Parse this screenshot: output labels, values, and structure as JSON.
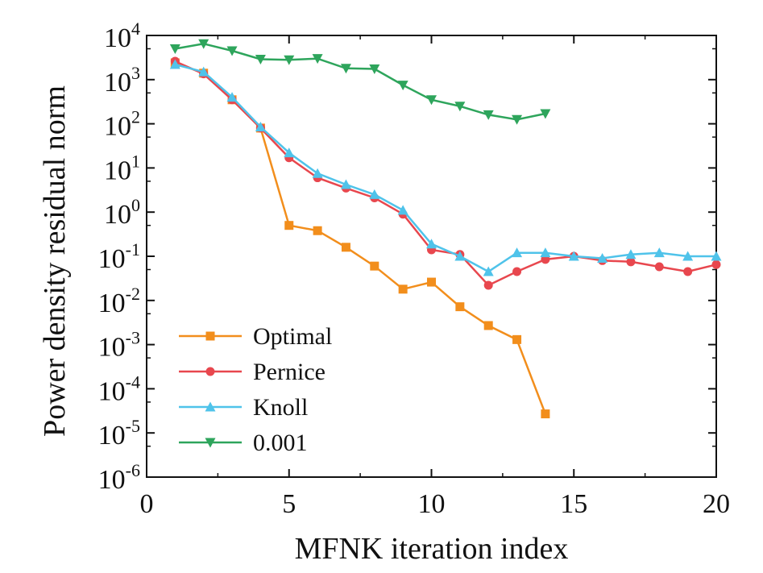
{
  "chart_data": {
    "type": "line",
    "xlabel": "MFNK iteration index",
    "ylabel": "Power density residual norm",
    "xlim": [
      0,
      20
    ],
    "ylim": [
      1e-06,
      10000.0
    ],
    "yscale": "log",
    "xticks": [
      0,
      5,
      10,
      15,
      20
    ],
    "yticks": [
      {
        "base": "10",
        "exp": "4",
        "value": 10000
      },
      {
        "base": "10",
        "exp": "3",
        "value": 1000
      },
      {
        "base": "10",
        "exp": "2",
        "value": 100
      },
      {
        "base": "10",
        "exp": "1",
        "value": 10
      },
      {
        "base": "10",
        "exp": "0",
        "value": 1
      },
      {
        "base": "10",
        "exp": "-1",
        "value": 0.1
      },
      {
        "base": "10",
        "exp": "-2",
        "value": 0.01
      },
      {
        "base": "10",
        "exp": "-3",
        "value": 0.001
      },
      {
        "base": "10",
        "exp": "-4",
        "value": 0.0001
      },
      {
        "base": "10",
        "exp": "-5",
        "value": 1e-05
      },
      {
        "base": "10",
        "exp": "-6",
        "value": 1e-06
      }
    ],
    "legend_position": "bottom-left",
    "grid": false,
    "series": [
      {
        "name": "Optimal",
        "color": "#f28e1c",
        "marker": "square",
        "x": [
          1,
          2,
          3,
          4,
          5,
          6,
          7,
          8,
          9,
          10,
          11,
          12,
          13,
          14
        ],
        "y": [
          2400,
          1400,
          350,
          80,
          0.5,
          0.38,
          0.16,
          0.06,
          0.018,
          0.026,
          0.0072,
          0.0027,
          0.0013,
          2.7e-05
        ]
      },
      {
        "name": "Pernice",
        "color": "#e8474e",
        "marker": "circle",
        "x": [
          1,
          2,
          3,
          4,
          5,
          6,
          7,
          8,
          9,
          10,
          11,
          12,
          13,
          14,
          15,
          16,
          17,
          18,
          19,
          20
        ],
        "y": [
          2600,
          1350,
          350,
          80,
          17,
          6,
          3.5,
          2.1,
          0.9,
          0.14,
          0.11,
          0.022,
          0.045,
          0.085,
          0.1,
          0.08,
          0.075,
          0.058,
          0.045,
          0.065
        ]
      },
      {
        "name": "Knoll",
        "color": "#4fc3ea",
        "marker": "triangle-up",
        "x": [
          1,
          2,
          3,
          4,
          5,
          6,
          7,
          8,
          9,
          10,
          11,
          12,
          13,
          14,
          15,
          16,
          17,
          18,
          19,
          20
        ],
        "y": [
          2200,
          1500,
          400,
          85,
          22,
          7.5,
          4.2,
          2.5,
          1.1,
          0.19,
          0.1,
          0.045,
          0.12,
          0.12,
          0.1,
          0.09,
          0.11,
          0.12,
          0.1,
          0.1
        ]
      },
      {
        "name": "0.001",
        "color": "#2ea55c",
        "marker": "triangle-down",
        "x": [
          1,
          2,
          3,
          4,
          5,
          6,
          7,
          8,
          9,
          10,
          11,
          12,
          13,
          14
        ],
        "y": [
          5000,
          6500,
          4500,
          2900,
          2800,
          3000,
          1800,
          1750,
          750,
          350,
          250,
          160,
          125,
          170
        ]
      }
    ]
  }
}
